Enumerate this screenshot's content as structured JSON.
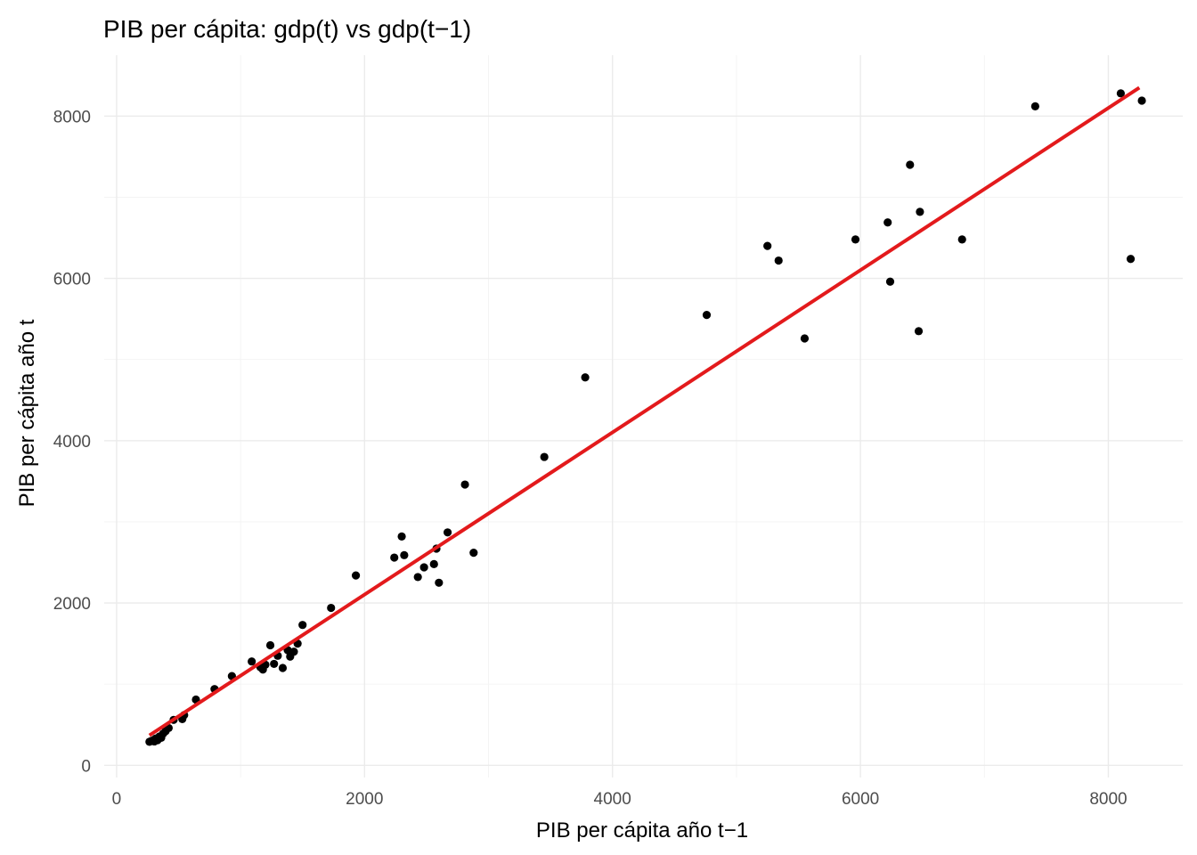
{
  "chart_data": {
    "type": "scatter",
    "title": "PIB per cápita: gdp(t) vs gdp(t−1)",
    "xlabel": "PIB per cápita año t−1",
    "ylabel": "PIB per cápita año t",
    "xlim": [
      -100,
      8600
    ],
    "ylim": [
      -150,
      8750
    ],
    "x_ticks": [
      0,
      2000,
      4000,
      6000,
      8000
    ],
    "y_ticks": [
      0,
      2000,
      4000,
      6000,
      8000
    ],
    "x_tick_labels": [
      "0",
      "2000",
      "4000",
      "6000",
      "8000"
    ],
    "y_tick_labels": [
      "0",
      "2000",
      "4000",
      "6000",
      "8000"
    ],
    "grid": true,
    "point_color": "#000000",
    "fit_line": {
      "type": "linear",
      "color": "#e31a1c",
      "x": [
        265,
        8250
      ],
      "y": [
        370,
        8350
      ]
    },
    "points": [
      {
        "x": 265,
        "y": 290
      },
      {
        "x": 280,
        "y": 300
      },
      {
        "x": 295,
        "y": 310
      },
      {
        "x": 305,
        "y": 295
      },
      {
        "x": 315,
        "y": 330
      },
      {
        "x": 330,
        "y": 310
      },
      {
        "x": 345,
        "y": 355
      },
      {
        "x": 360,
        "y": 340
      },
      {
        "x": 375,
        "y": 390
      },
      {
        "x": 395,
        "y": 420
      },
      {
        "x": 420,
        "y": 460
      },
      {
        "x": 460,
        "y": 560
      },
      {
        "x": 530,
        "y": 570
      },
      {
        "x": 545,
        "y": 620
      },
      {
        "x": 640,
        "y": 810
      },
      {
        "x": 790,
        "y": 940
      },
      {
        "x": 930,
        "y": 1100
      },
      {
        "x": 1090,
        "y": 1280
      },
      {
        "x": 1160,
        "y": 1210
      },
      {
        "x": 1180,
        "y": 1180
      },
      {
        "x": 1200,
        "y": 1240
      },
      {
        "x": 1240,
        "y": 1480
      },
      {
        "x": 1270,
        "y": 1250
      },
      {
        "x": 1300,
        "y": 1350
      },
      {
        "x": 1340,
        "y": 1200
      },
      {
        "x": 1380,
        "y": 1420
      },
      {
        "x": 1400,
        "y": 1340
      },
      {
        "x": 1430,
        "y": 1400
      },
      {
        "x": 1460,
        "y": 1500
      },
      {
        "x": 1500,
        "y": 1730
      },
      {
        "x": 1730,
        "y": 1940
      },
      {
        "x": 1930,
        "y": 2340
      },
      {
        "x": 2240,
        "y": 2560
      },
      {
        "x": 2300,
        "y": 2820
      },
      {
        "x": 2320,
        "y": 2590
      },
      {
        "x": 2430,
        "y": 2320
      },
      {
        "x": 2480,
        "y": 2440
      },
      {
        "x": 2560,
        "y": 2480
      },
      {
        "x": 2580,
        "y": 2670
      },
      {
        "x": 2600,
        "y": 2250
      },
      {
        "x": 2670,
        "y": 2870
      },
      {
        "x": 2810,
        "y": 3460
      },
      {
        "x": 2880,
        "y": 2620
      },
      {
        "x": 3450,
        "y": 3800
      },
      {
        "x": 3780,
        "y": 4780
      },
      {
        "x": 4760,
        "y": 5550
      },
      {
        "x": 5250,
        "y": 6400
      },
      {
        "x": 5340,
        "y": 6220
      },
      {
        "x": 5550,
        "y": 5260
      },
      {
        "x": 5960,
        "y": 6480
      },
      {
        "x": 6220,
        "y": 6690
      },
      {
        "x": 6240,
        "y": 5960
      },
      {
        "x": 6400,
        "y": 7400
      },
      {
        "x": 6470,
        "y": 5350
      },
      {
        "x": 6480,
        "y": 6820
      },
      {
        "x": 6820,
        "y": 6480
      },
      {
        "x": 7410,
        "y": 8120
      },
      {
        "x": 8100,
        "y": 8280
      },
      {
        "x": 8180,
        "y": 6240
      },
      {
        "x": 8270,
        "y": 8190
      }
    ]
  }
}
